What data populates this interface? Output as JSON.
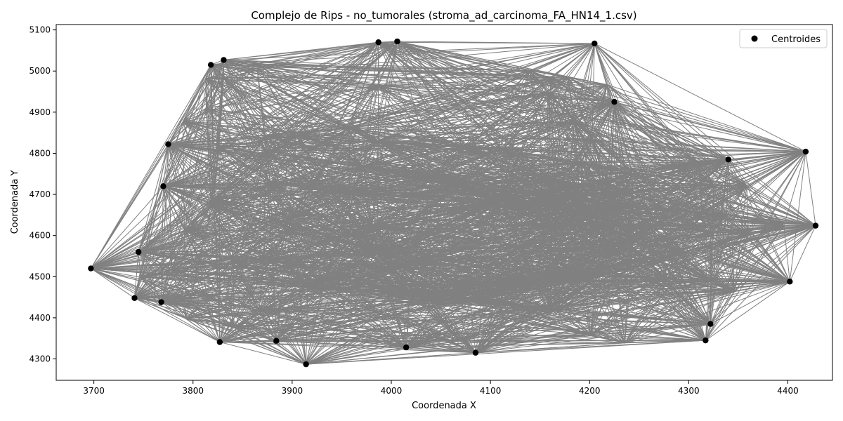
{
  "chart_data": {
    "type": "scatter",
    "title": "Complejo de Rips - no_tumorales (stroma_ad_carcinoma_FA_HN14_1.csv)",
    "xlabel": "Coordenada X",
    "ylabel": "Coordenada Y",
    "xlim": [
      3662,
      4445
    ],
    "ylim": [
      4248,
      5113
    ],
    "xticks": [
      3700,
      3800,
      3900,
      4000,
      4100,
      4200,
      4300,
      4400
    ],
    "yticks": [
      4300,
      4400,
      4500,
      4600,
      4700,
      4800,
      4900,
      5000,
      5100
    ],
    "legend": {
      "label": "Centroides",
      "position": "top-right"
    },
    "edge_color": "#808080",
    "point_color": "#000000",
    "grid": false,
    "hull": [
      {
        "x": 3697,
        "y": 4520
      },
      {
        "x": 3741,
        "y": 4448
      },
      {
        "x": 3768,
        "y": 4438
      },
      {
        "x": 3827,
        "y": 4341
      },
      {
        "x": 3884,
        "y": 4344
      },
      {
        "x": 3914,
        "y": 4287
      },
      {
        "x": 4015,
        "y": 4328
      },
      {
        "x": 4085,
        "y": 4315
      },
      {
        "x": 4317,
        "y": 4345
      },
      {
        "x": 4322,
        "y": 4385
      },
      {
        "x": 4402,
        "y": 4488
      },
      {
        "x": 4428,
        "y": 4624
      },
      {
        "x": 4418,
        "y": 4804
      },
      {
        "x": 4340,
        "y": 4785
      },
      {
        "x": 4225,
        "y": 4925
      },
      {
        "x": 4205,
        "y": 5067
      },
      {
        "x": 4006,
        "y": 5072
      },
      {
        "x": 3987,
        "y": 5070
      },
      {
        "x": 3831,
        "y": 5027
      },
      {
        "x": 3818,
        "y": 5015
      },
      {
        "x": 3775,
        "y": 4822
      },
      {
        "x": 3770,
        "y": 4720
      },
      {
        "x": 3745,
        "y": 4560
      }
    ]
  }
}
